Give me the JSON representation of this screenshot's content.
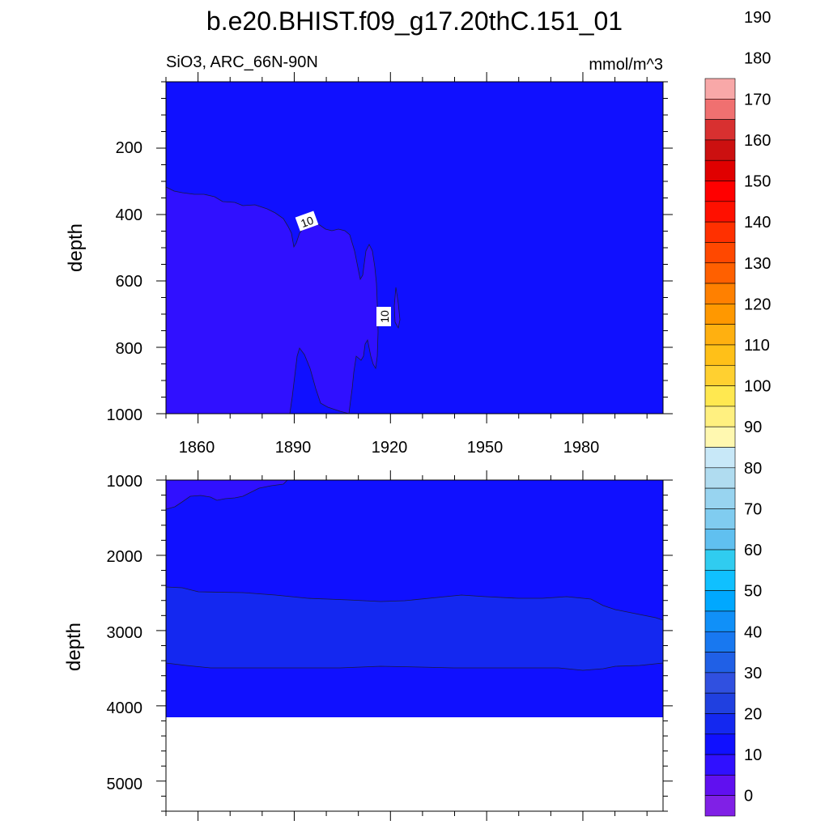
{
  "title": "b.e20.BHIST.f09_g17.20thC.151_01",
  "subtitle_left": "SiO3, ARC_66N-90N",
  "subtitle_right": "mmol/m^3",
  "chart_data": [
    {
      "type": "heatmap",
      "panel": "upper",
      "ylabel": "depth",
      "xlim": [
        1850,
        2005
      ],
      "ylim": [
        0,
        1000
      ],
      "y_reversed": true,
      "x_ticks": [
        1860,
        1890,
        1920,
        1950,
        1980
      ],
      "y_ticks": [
        200,
        400,
        600,
        800,
        1000
      ],
      "contour_labels": [
        "10",
        "10"
      ],
      "regions": [
        {
          "band": "10-15",
          "description": "surface to ~300-450 m near-uniform field"
        },
        {
          "band": "5-10",
          "extent": "1850-1923, ~320-1000 m"
        }
      ]
    },
    {
      "type": "heatmap",
      "panel": "lower",
      "ylabel": "depth",
      "xlim": [
        1850,
        2005
      ],
      "ylim": [
        1000,
        5400
      ],
      "y_reversed": true,
      "y_ticks": [
        1000,
        2000,
        3000,
        4000,
        5000
      ],
      "missing_below": 4120,
      "regions": [
        {
          "band": "5-10",
          "extent": "1850-1887, 1000-1400 m"
        },
        {
          "band": "10-15",
          "extent": "1000-2450 m and 3450-4120 m"
        },
        {
          "band": "15-20",
          "extent": "~2400-3450 m"
        }
      ]
    }
  ],
  "colorbar": {
    "labels": [
      "0",
      "10",
      "20",
      "30",
      "40",
      "50",
      "60",
      "70",
      "80",
      "90",
      "100",
      "110",
      "120",
      "130",
      "140",
      "150",
      "160",
      "170",
      "180",
      "190"
    ],
    "colors": [
      "#8020e6",
      "#6010f0",
      "#3010ff",
      "#1010ff",
      "#1428f0",
      "#2040e0",
      "#3050e0",
      "#2060e6",
      "#1878f0",
      "#1090f8",
      "#00a8ff",
      "#10c0ff",
      "#30ccf0",
      "#60c0f0",
      "#80ccf0",
      "#98d4f0",
      "#b0dcf0",
      "#c8e8f8",
      "#fff8b0",
      "#fff080",
      "#ffe850",
      "#ffd030",
      "#ffc018",
      "#ffb010",
      "#ff9800",
      "#ff8000",
      "#ff6000",
      "#ff4800",
      "#ff3000",
      "#ff1000",
      "#ff0000",
      "#e00000",
      "#cc1010",
      "#d83030",
      "#f07070",
      "#f8a8a8"
    ]
  }
}
